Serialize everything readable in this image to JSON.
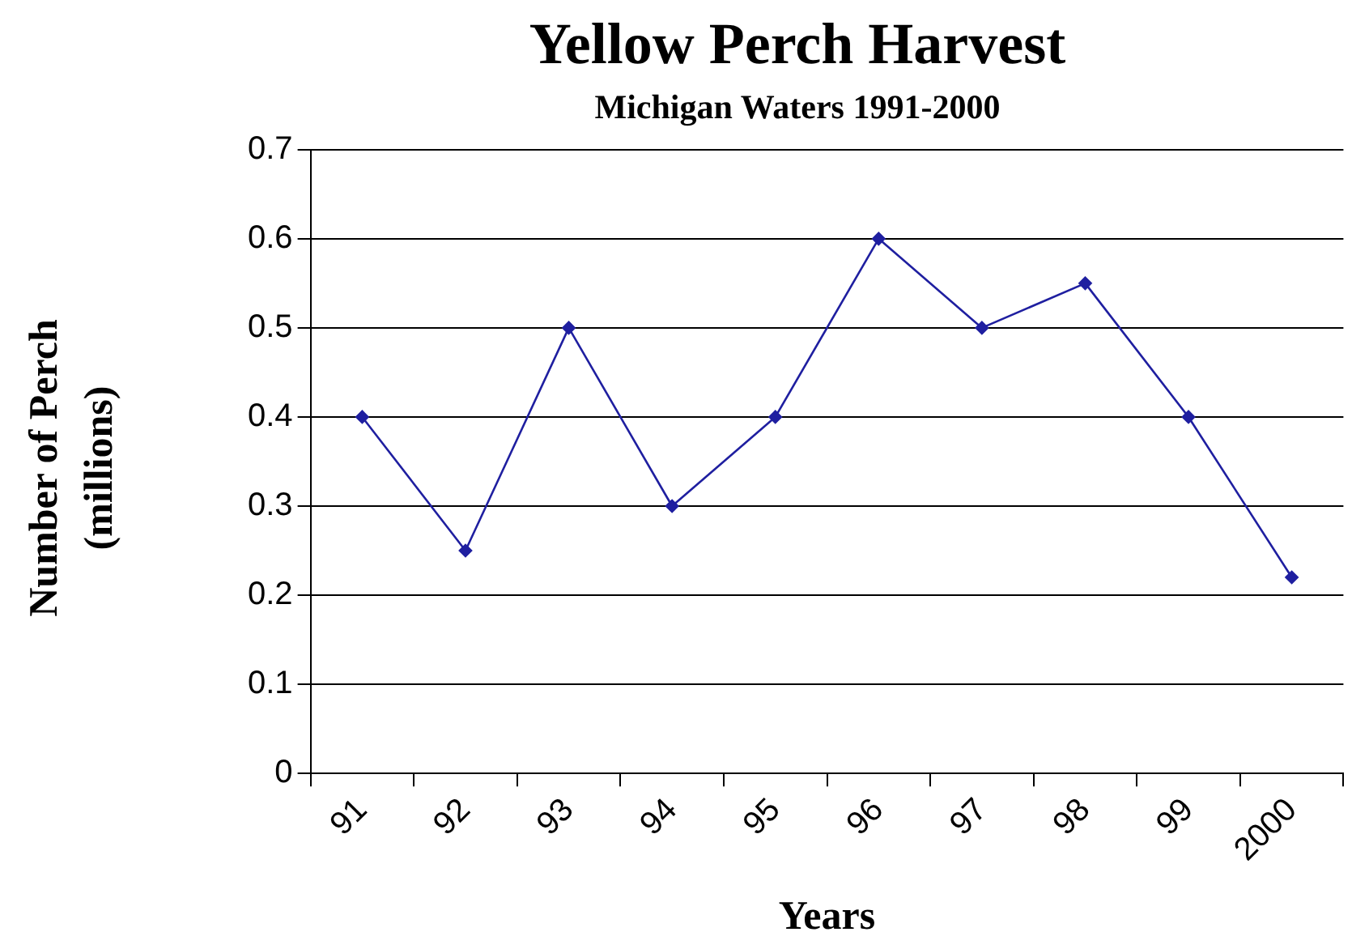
{
  "chart_data": {
    "type": "line",
    "title": "Yellow Perch Harvest",
    "subtitle": "Michigan Waters 1991-2000",
    "xlabel": "Years",
    "ylabel": "Number of Perch (millions)",
    "categories": [
      "91",
      "92",
      "93",
      "94",
      "95",
      "96",
      "97",
      "98",
      "99",
      "2000"
    ],
    "series": [
      {
        "color": "#1f1fa0",
        "values": [
          0.4,
          0.25,
          0.5,
          0.3,
          0.4,
          0.6,
          0.5,
          0.55,
          0.4,
          0.22
        ]
      }
    ],
    "ylim": [
      0,
      0.7
    ],
    "yticks": [
      0,
      0.1,
      0.2,
      0.3,
      0.4,
      0.5,
      0.6,
      0.7
    ],
    "grid": "y",
    "legend": false,
    "marker": "diamond",
    "line_style": "solid"
  }
}
